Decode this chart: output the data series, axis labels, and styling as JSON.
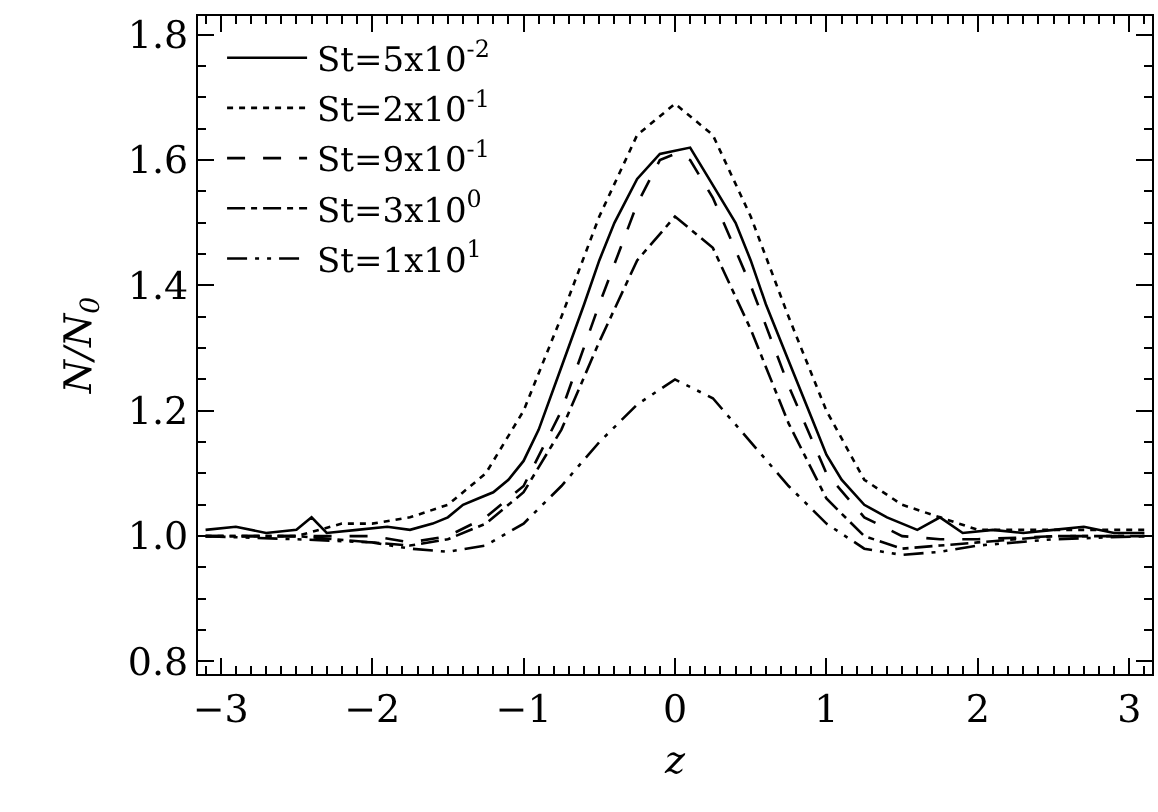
{
  "chart_data": {
    "type": "line",
    "xlabel": "z",
    "ylabel": "N/N$_{0}$",
    "xlim": [
      -3.15,
      3.15
    ],
    "ylim": [
      0.78,
      1.83
    ],
    "xticks": [
      {
        "value": -3,
        "label": "−3"
      },
      {
        "value": -2,
        "label": "−2"
      },
      {
        "value": -1,
        "label": "−1"
      },
      0,
      1,
      2,
      3
    ],
    "yticks": [
      {
        "value": 0.8,
        "label": "0.8"
      },
      {
        "value": 1.0,
        "label": "1.0"
      },
      {
        "value": 1.2,
        "label": "1.2"
      },
      {
        "value": 1.4,
        "label": "1.4"
      },
      {
        "value": 1.6,
        "label": "1.6"
      },
      {
        "value": 1.8,
        "label": "1.8"
      }
    ],
    "grid": false,
    "legend": "top left",
    "marker": "none",
    "series": [
      {
        "name": "St=5x10$^{-2}$",
        "color": "#000000",
        "line_style": "solid",
        "x": [
          -3.1,
          -2.9,
          -2.7,
          -2.5,
          -2.4,
          -2.3,
          -2.1,
          -1.9,
          -1.75,
          -1.6,
          -1.5,
          -1.4,
          -1.3,
          -1.2,
          -1.1,
          -1.0,
          -0.9,
          -0.75,
          -0.6,
          -0.5,
          -0.4,
          -0.25,
          -0.1,
          0,
          0.1,
          0.25,
          0.4,
          0.5,
          0.6,
          0.75,
          0.9,
          1.0,
          1.1,
          1.25,
          1.4,
          1.5,
          1.6,
          1.75,
          1.9,
          2.1,
          2.3,
          2.5,
          2.7,
          2.9,
          3.1
        ],
        "values": [
          1.01,
          1.015,
          1.005,
          1.01,
          1.03,
          1.005,
          1.01,
          1.015,
          1.01,
          1.02,
          1.03,
          1.05,
          1.06,
          1.07,
          1.09,
          1.12,
          1.17,
          1.27,
          1.37,
          1.44,
          1.5,
          1.57,
          1.61,
          1.615,
          1.62,
          1.56,
          1.5,
          1.44,
          1.37,
          1.28,
          1.19,
          1.13,
          1.09,
          1.05,
          1.03,
          1.02,
          1.01,
          1.03,
          1.005,
          1.01,
          1.005,
          1.01,
          1.015,
          1.005,
          1.005
        ]
      },
      {
        "name": "St=2x10$^{-1}$",
        "color": "#000000",
        "line_style": "dotted",
        "x": [
          -3.1,
          -2.5,
          -2.2,
          -2.0,
          -1.75,
          -1.5,
          -1.25,
          -1.0,
          -0.75,
          -0.5,
          -0.25,
          0,
          0.25,
          0.5,
          0.75,
          1.0,
          1.25,
          1.5,
          1.75,
          2.0,
          2.5,
          3.1
        ],
        "values": [
          1.0,
          1.0,
          1.02,
          1.02,
          1.03,
          1.05,
          1.1,
          1.2,
          1.35,
          1.51,
          1.64,
          1.69,
          1.64,
          1.51,
          1.35,
          1.2,
          1.09,
          1.05,
          1.03,
          1.01,
          1.01,
          1.01
        ]
      },
      {
        "name": "St=9x10$^{-1}$",
        "color": "#000000",
        "line_style": "dashed",
        "x": [
          -3.1,
          -2.5,
          -2.0,
          -1.75,
          -1.5,
          -1.25,
          -1.0,
          -0.75,
          -0.5,
          -0.25,
          -0.1,
          0,
          0.1,
          0.25,
          0.5,
          0.75,
          1.0,
          1.25,
          1.5,
          1.75,
          2.0,
          2.5,
          3.1
        ],
        "values": [
          1.0,
          1.0,
          1.0,
          0.99,
          1.0,
          1.03,
          1.08,
          1.2,
          1.37,
          1.53,
          1.6,
          1.61,
          1.6,
          1.54,
          1.4,
          1.24,
          1.1,
          1.03,
          1.0,
          0.995,
          0.995,
          1.0,
          1.0
        ]
      },
      {
        "name": "St=3x10$^{0}$",
        "color": "#000000",
        "line_style": "dashdot",
        "x": [
          -3.1,
          -2.5,
          -2.0,
          -1.75,
          -1.5,
          -1.25,
          -1.0,
          -0.75,
          -0.5,
          -0.25,
          0,
          0.25,
          0.5,
          0.75,
          1.0,
          1.25,
          1.5,
          1.75,
          2.0,
          2.5,
          3.1
        ],
        "values": [
          1.0,
          1.0,
          0.99,
          0.985,
          0.995,
          1.02,
          1.07,
          1.17,
          1.31,
          1.44,
          1.51,
          1.46,
          1.33,
          1.18,
          1.06,
          1.0,
          0.98,
          0.985,
          0.99,
          1.0,
          1.0
        ]
      },
      {
        "name": "St=1x10$^{1}$",
        "color": "#000000",
        "line_style": "dashdotdot",
        "x": [
          -3.1,
          -2.5,
          -2.0,
          -1.75,
          -1.5,
          -1.25,
          -1.0,
          -0.75,
          -0.5,
          -0.25,
          0,
          0.25,
          0.5,
          0.75,
          1.0,
          1.25,
          1.5,
          1.75,
          2.0,
          2.5,
          3.1
        ],
        "values": [
          1.0,
          0.995,
          0.99,
          0.98,
          0.975,
          0.985,
          1.02,
          1.08,
          1.15,
          1.21,
          1.25,
          1.22,
          1.15,
          1.08,
          1.02,
          0.98,
          0.97,
          0.975,
          0.985,
          0.995,
          1.0
        ]
      }
    ]
  }
}
